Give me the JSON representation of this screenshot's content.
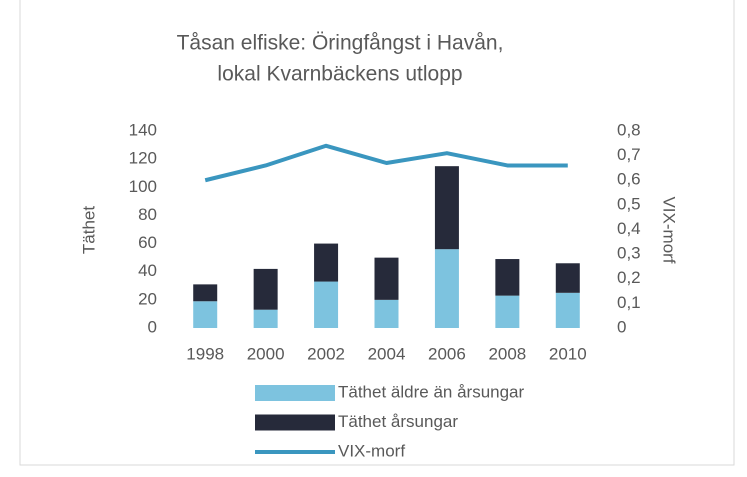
{
  "chart_data": {
    "type": "bar",
    "title": [
      "Tåsan elfiske: Öringfångst i Havån,",
      "lokal Kvarnbäckens utlopp"
    ],
    "y_label": "Täthet",
    "y2_label": "VIX-morf",
    "categories": [
      "1998",
      "2000",
      "2002",
      "2004",
      "2006",
      "2008",
      "2010"
    ],
    "series": [
      {
        "name": "Täthet äldre än årsungar",
        "color": "#7dc3df",
        "values": [
          19,
          13,
          33,
          20,
          56,
          23,
          25
        ]
      },
      {
        "name": "Täthet årsungar",
        "color": "#262a3a",
        "values": [
          12,
          29,
          27,
          30,
          59,
          26,
          21
        ]
      },
      {
        "name": "VIX-morf",
        "color": "#3a96bf",
        "type": "line",
        "axis": "y2",
        "values": [
          0.6,
          0.66,
          0.74,
          0.67,
          0.71,
          0.66,
          0.66
        ]
      }
    ],
    "stacked": true,
    "ylim": [
      0,
      140
    ],
    "yticks": [
      0,
      20,
      40,
      60,
      80,
      100,
      120,
      140
    ],
    "y2lim": [
      0,
      0.8
    ],
    "y2ticks": [
      0,
      {
        "value": 0.1,
        "label": "0,1"
      },
      {
        "value": 0.2,
        "label": "0,2"
      },
      {
        "value": 0.3,
        "label": "0,3"
      },
      {
        "value": 0.4,
        "label": "0,4"
      },
      {
        "value": 0.5,
        "label": "0,5"
      },
      {
        "value": 0.6,
        "label": "0,6"
      },
      {
        "value": 0.7,
        "label": "0,7"
      },
      {
        "value": 0.8,
        "label": "0,8"
      }
    ],
    "grid": false,
    "legend": "bottom"
  }
}
